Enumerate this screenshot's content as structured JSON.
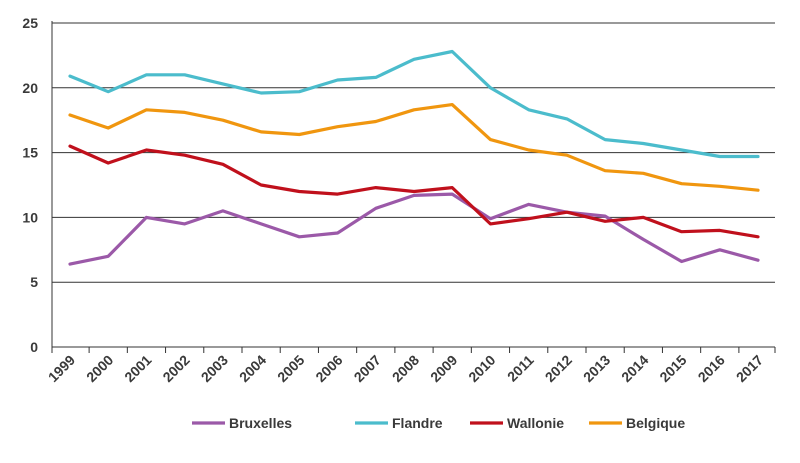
{
  "chart_data": {
    "type": "line",
    "x": [
      "1999",
      "2000",
      "2001",
      "2002",
      "2003",
      "2004",
      "2005",
      "2006",
      "2007",
      "2008",
      "2009",
      "2010",
      "2011",
      "2012",
      "2013",
      "2014",
      "2015",
      "2016",
      "2017"
    ],
    "series": [
      {
        "name": "Bruxelles",
        "color": "#9b59a8",
        "values": [
          6.4,
          7.0,
          10.0,
          9.5,
          10.5,
          9.5,
          8.5,
          8.8,
          10.7,
          11.7,
          11.8,
          9.9,
          11.0,
          10.4,
          10.1,
          8.3,
          6.6,
          7.5,
          6.7
        ]
      },
      {
        "name": "Flandre",
        "color": "#4bbccc",
        "values": [
          20.9,
          19.7,
          21.0,
          21.0,
          20.3,
          19.6,
          19.7,
          20.6,
          20.8,
          22.2,
          22.8,
          20.0,
          18.3,
          17.6,
          16.0,
          15.7,
          15.2,
          14.7,
          14.7
        ]
      },
      {
        "name": "Wallonie",
        "color": "#c0101c",
        "values": [
          15.5,
          14.2,
          15.2,
          14.8,
          14.1,
          12.5,
          12.0,
          11.8,
          12.3,
          12.0,
          12.3,
          9.5,
          9.9,
          10.4,
          9.7,
          10.0,
          8.9,
          9.0,
          8.5
        ]
      },
      {
        "name": "Belgique",
        "color": "#f0960f",
        "values": [
          17.9,
          16.9,
          18.3,
          18.1,
          17.5,
          16.6,
          16.4,
          17.0,
          17.4,
          18.3,
          18.7,
          16.0,
          15.2,
          14.8,
          13.6,
          13.4,
          12.6,
          12.4,
          12.1
        ]
      }
    ],
    "yticks": [
      "0",
      "5",
      "10",
      "15",
      "20",
      "25"
    ],
    "ylim": [
      0,
      25
    ],
    "grid": true,
    "legend_position": "bottom"
  }
}
